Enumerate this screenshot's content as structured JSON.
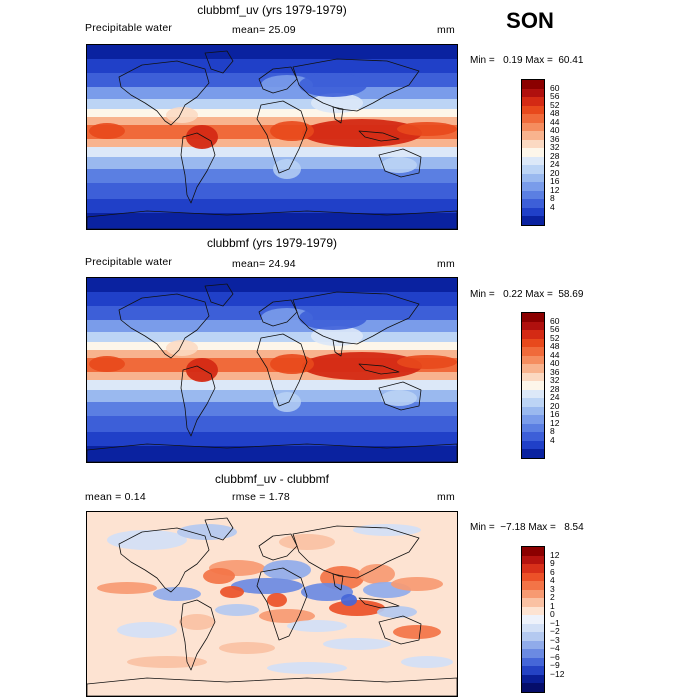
{
  "season": "SON",
  "panels": [
    {
      "id": "p1",
      "title": "clubbmf_uv (yrs 1979-1979)",
      "left_label": "Precipitable water",
      "mean_text": "mean=  25.09",
      "units": "mm",
      "minmax_text": "Min =   0.19 Max =  60.41",
      "kind": "field",
      "colorbar": {
        "labels": [
          "60",
          "56",
          "52",
          "48",
          "44",
          "40",
          "36",
          "32",
          "28",
          "24",
          "20",
          "16",
          "12",
          "8",
          "4"
        ],
        "colors": [
          "#8b0000",
          "#b0100e",
          "#d42a14",
          "#e8491c",
          "#f06a3a",
          "#f58d5f",
          "#f8b38e",
          "#fbd9c2",
          "#fdf6ea",
          "#dce8f8",
          "#bcd4f5",
          "#9ab9ef",
          "#7a9cea",
          "#5b7fe2",
          "#3d5fd8",
          "#2040c8",
          "#0a22a0"
        ]
      }
    },
    {
      "id": "p2",
      "title": "clubbmf (yrs 1979-1979)",
      "left_label": "Precipitable water",
      "mean_text": "mean=  24.94",
      "units": "mm",
      "minmax_text": "Min =   0.22 Max =  58.69",
      "kind": "field",
      "colorbar": {
        "labels": [
          "60",
          "56",
          "52",
          "48",
          "44",
          "40",
          "36",
          "32",
          "28",
          "24",
          "20",
          "16",
          "12",
          "8",
          "4"
        ],
        "colors": [
          "#8b0000",
          "#b0100e",
          "#d42a14",
          "#e8491c",
          "#f06a3a",
          "#f58d5f",
          "#f8b38e",
          "#fbd9c2",
          "#fdf6ea",
          "#dce8f8",
          "#bcd4f5",
          "#9ab9ef",
          "#7a9cea",
          "#5b7fe2",
          "#3d5fd8",
          "#2040c8",
          "#0a22a0"
        ]
      }
    },
    {
      "id": "p3",
      "title": "clubbmf_uv - clubbmf",
      "mean_text": "mean =    0.14",
      "rmse_text": "rmse =    1.78",
      "units": "mm",
      "minmax_text": "Min =  −7.18 Max =   8.54",
      "kind": "diff",
      "colorbar": {
        "labels": [
          "12",
          "9",
          "6",
          "4",
          "3",
          "2",
          "1",
          "0",
          "−1",
          "−2",
          "−3",
          "−4",
          "−6",
          "−9",
          "−12"
        ],
        "colors": [
          "#8b0000",
          "#b5130f",
          "#d8301a",
          "#ec5128",
          "#f37447",
          "#f79a72",
          "#fac1a3",
          "#fde3d2",
          "#eef2fb",
          "#d3e0f6",
          "#b4c9f0",
          "#90abea",
          "#6b8ae2",
          "#4566d8",
          "#2442c4",
          "#0a1e96",
          "#050d6a"
        ]
      }
    }
  ],
  "chart_data": [
    {
      "type": "heatmap",
      "title": "clubbmf_uv (yrs 1979-1979)",
      "variable": "Precipitable water",
      "units": "mm",
      "mean": 25.09,
      "min": 0.19,
      "max": 60.41,
      "contour_levels": [
        4,
        8,
        12,
        16,
        20,
        24,
        28,
        32,
        36,
        40,
        44,
        48,
        52,
        56,
        60
      ]
    },
    {
      "type": "heatmap",
      "title": "clubbmf (yrs 1979-1979)",
      "variable": "Precipitable water",
      "units": "mm",
      "mean": 24.94,
      "min": 0.22,
      "max": 58.69,
      "contour_levels": [
        4,
        8,
        12,
        16,
        20,
        24,
        28,
        32,
        36,
        40,
        44,
        48,
        52,
        56,
        60
      ]
    },
    {
      "type": "heatmap",
      "title": "clubbmf_uv - clubbmf",
      "units": "mm",
      "mean": 0.14,
      "rmse": 1.78,
      "min": -7.18,
      "max": 8.54,
      "contour_levels": [
        -12,
        -9,
        -6,
        -4,
        -3,
        -2,
        -1,
        0,
        1,
        2,
        3,
        4,
        6,
        9,
        12
      ]
    }
  ]
}
